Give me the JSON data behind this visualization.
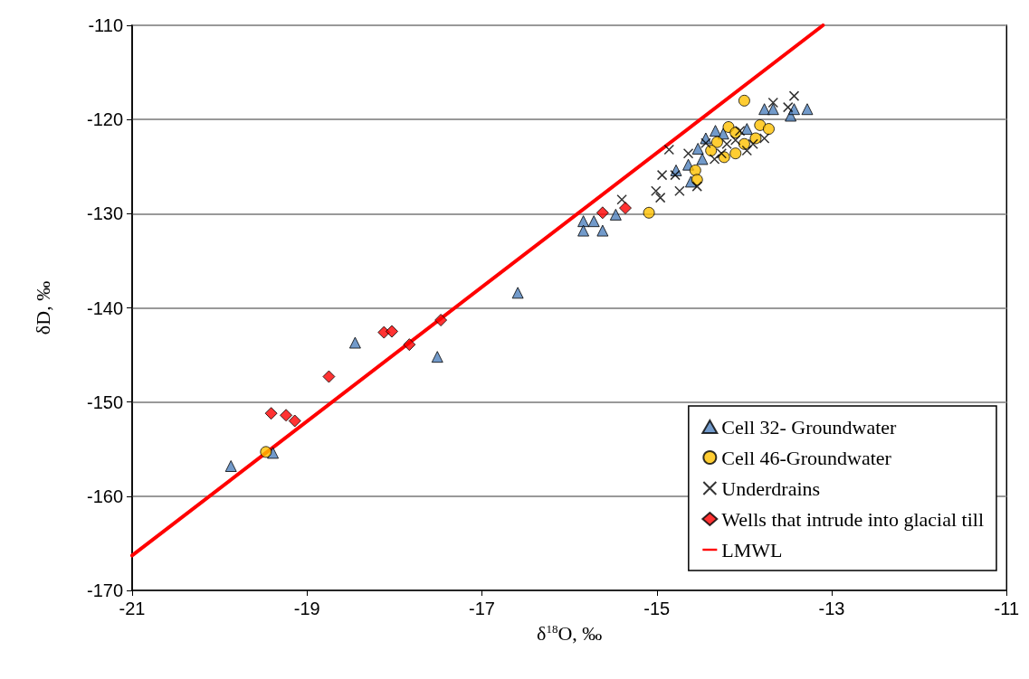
{
  "chart_data": {
    "type": "scatter",
    "xlabel": "δ$^{18}$O, ‰",
    "ylabel": "δD, ‰",
    "xlim": [
      -21,
      -11
    ],
    "xticks": [
      -21,
      -19,
      -17,
      -15,
      -13,
      -11
    ],
    "ylim": [
      -170,
      -110
    ],
    "yticks": [
      -170,
      -160,
      -150,
      -140,
      -130,
      -120,
      -110
    ],
    "grid": "y",
    "legend": "bottom right",
    "series": [
      {
        "name": "Cell 32- Groundwater",
        "color": "#4f81bd",
        "marker": "triangle",
        "x": [
          -19.87,
          -19.39,
          -18.45,
          -17.51,
          -16.59,
          -15.84,
          -15.72,
          -15.84,
          -15.62,
          -15.47,
          -14.78,
          -14.64,
          -14.53,
          -14.48,
          -14.33,
          -13.97,
          -13.77,
          -13.67,
          -13.47,
          -13.43,
          -13.28,
          -14.44,
          -14.24,
          -14.61
        ],
        "values": [
          -156.8,
          -155.4,
          -143.7,
          -145.2,
          -138.4,
          -130.8,
          -130.8,
          -131.8,
          -131.8,
          -130.1,
          -125.4,
          -124.8,
          -123.1,
          -124.2,
          -121.2,
          -121,
          -118.9,
          -118.9,
          -119.6,
          -118.9,
          -118.9,
          -122,
          -121.5,
          -126.6
        ]
      },
      {
        "name": "Cell 46-Groundwater",
        "color": "#ffc000",
        "marker": "circle",
        "x": [
          -14,
          -14.18,
          -14.1,
          -13.82,
          -13.72,
          -13.87,
          -14,
          -14.31,
          -14.1,
          -14.23,
          -14.38,
          -14.56,
          -14.54,
          -15.09,
          -19.47
        ],
        "values": [
          -118,
          -120.8,
          -121.4,
          -120.6,
          -121,
          -122,
          -122.6,
          -122.4,
          -123.6,
          -124,
          -123.3,
          -125.4,
          -126.4,
          -129.9,
          -155.3
        ]
      },
      {
        "name": "Underdrains",
        "color": "#000000",
        "marker": "cross",
        "x": [
          -14.86,
          -14.94,
          -14.79,
          -15.01,
          -14.96,
          -14.74,
          -14.54,
          -15.4,
          -14.64,
          -14.44,
          -13.43,
          -13.67,
          -13.5,
          -13.77,
          -13.97,
          -14.34,
          -14.2,
          -14.1,
          -14.26,
          -13.9,
          -14.05
        ],
        "values": [
          -123.2,
          -125.9,
          -125.9,
          -127.6,
          -128.3,
          -127.6,
          -127.1,
          -128.5,
          -123.6,
          -122.5,
          -117.5,
          -118.2,
          -118.7,
          -122,
          -123.3,
          -124.2,
          -122.6,
          -122.2,
          -123.6,
          -122.6,
          -121.2
        ]
      },
      {
        "name": "Wells that intrude into glacial till",
        "color": "#ff0000",
        "marker": "diamond",
        "x": [
          -17.47,
          -17.83,
          -18.12,
          -18.03,
          -18.75,
          -19.41,
          -19.24,
          -19.14,
          -15.62,
          -15.36
        ],
        "values": [
          -141.3,
          -143.9,
          -142.6,
          -142.5,
          -147.3,
          -151.2,
          -151.4,
          -152,
          -129.9,
          -129.4
        ]
      },
      {
        "name": "LMWL",
        "type": "line",
        "color": "#ff0000",
        "marker": "none",
        "line_style": "solid",
        "x": [
          -21,
          -13.1
        ],
        "values": [
          -166.3,
          -110
        ]
      }
    ]
  }
}
